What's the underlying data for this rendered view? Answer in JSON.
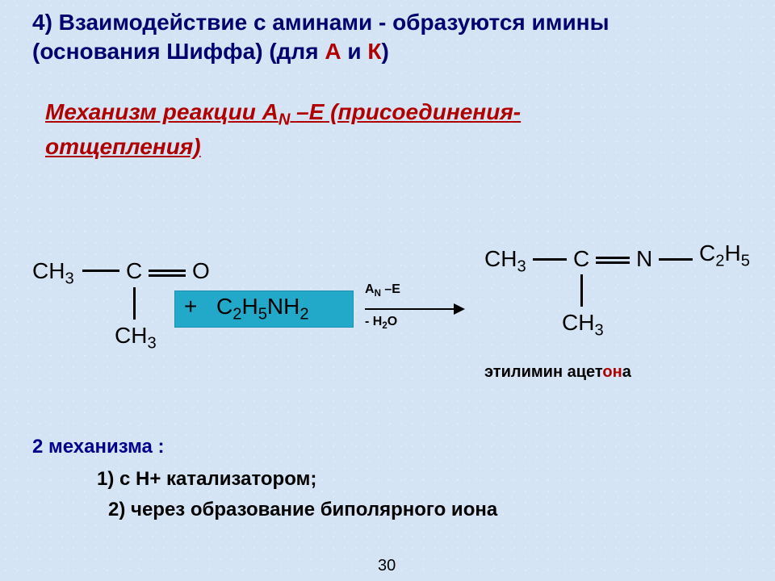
{
  "colors": {
    "background": "#d4e4f4",
    "title": "#00006e",
    "accent_red": "#b00000",
    "amine_box": "#22a8c8",
    "mech_label": "#00008b",
    "text": "#000000"
  },
  "typography": {
    "title_fontsize": 28,
    "body_fontsize": 24,
    "chem_fontsize": 28,
    "arrow_label_fontsize": 16,
    "product_name_fontsize": 20
  },
  "title": {
    "num": "4)",
    "line1_rest": "   Взаимодействие с аминами  - образуются имины",
    "line2_pre": "(основания Шиффа)  (для ",
    "a": "А",
    "and": " и ",
    "k": "К",
    "line2_post": ")"
  },
  "mechanism_heading": {
    "pre": "Механизм реакции А",
    "sub": "N",
    "mid": " –Е  (присоединения-",
    "line2": "отщепления)"
  },
  "reaction": {
    "reagent_left": {
      "top_left": "CH",
      "top_left_sub": "3",
      "center": "C",
      "right": "O",
      "bottom": "CH",
      "bottom_sub": "3"
    },
    "plus": "+",
    "amine": {
      "c": "C",
      "c_sub": "2",
      "h": "H",
      "h_sub": "5",
      "n": "NH",
      "n_sub": "2"
    },
    "arrow": {
      "top_pre": "A",
      "top_sub": "N",
      "top_post": " –E",
      "bottom_pre": "- H",
      "bottom_sub": "2",
      "bottom_post": "O"
    },
    "product": {
      "top_left": "CH",
      "top_left_sub": "3",
      "center": "C",
      "n": "N",
      "right_c": "C",
      "right_c_sub": "2",
      "right_h": "H",
      "right_h_sub": "5",
      "bottom": "CH",
      "bottom_sub": "3"
    },
    "product_name": {
      "pre": "этилимин ацет",
      "on": "он",
      "post": "а"
    }
  },
  "bottom": {
    "heading": "2 механизма :",
    "item1": "1) с Н+ катализатором;",
    "item2": "2)    через образование биполярного иона"
  },
  "page_number": "30"
}
